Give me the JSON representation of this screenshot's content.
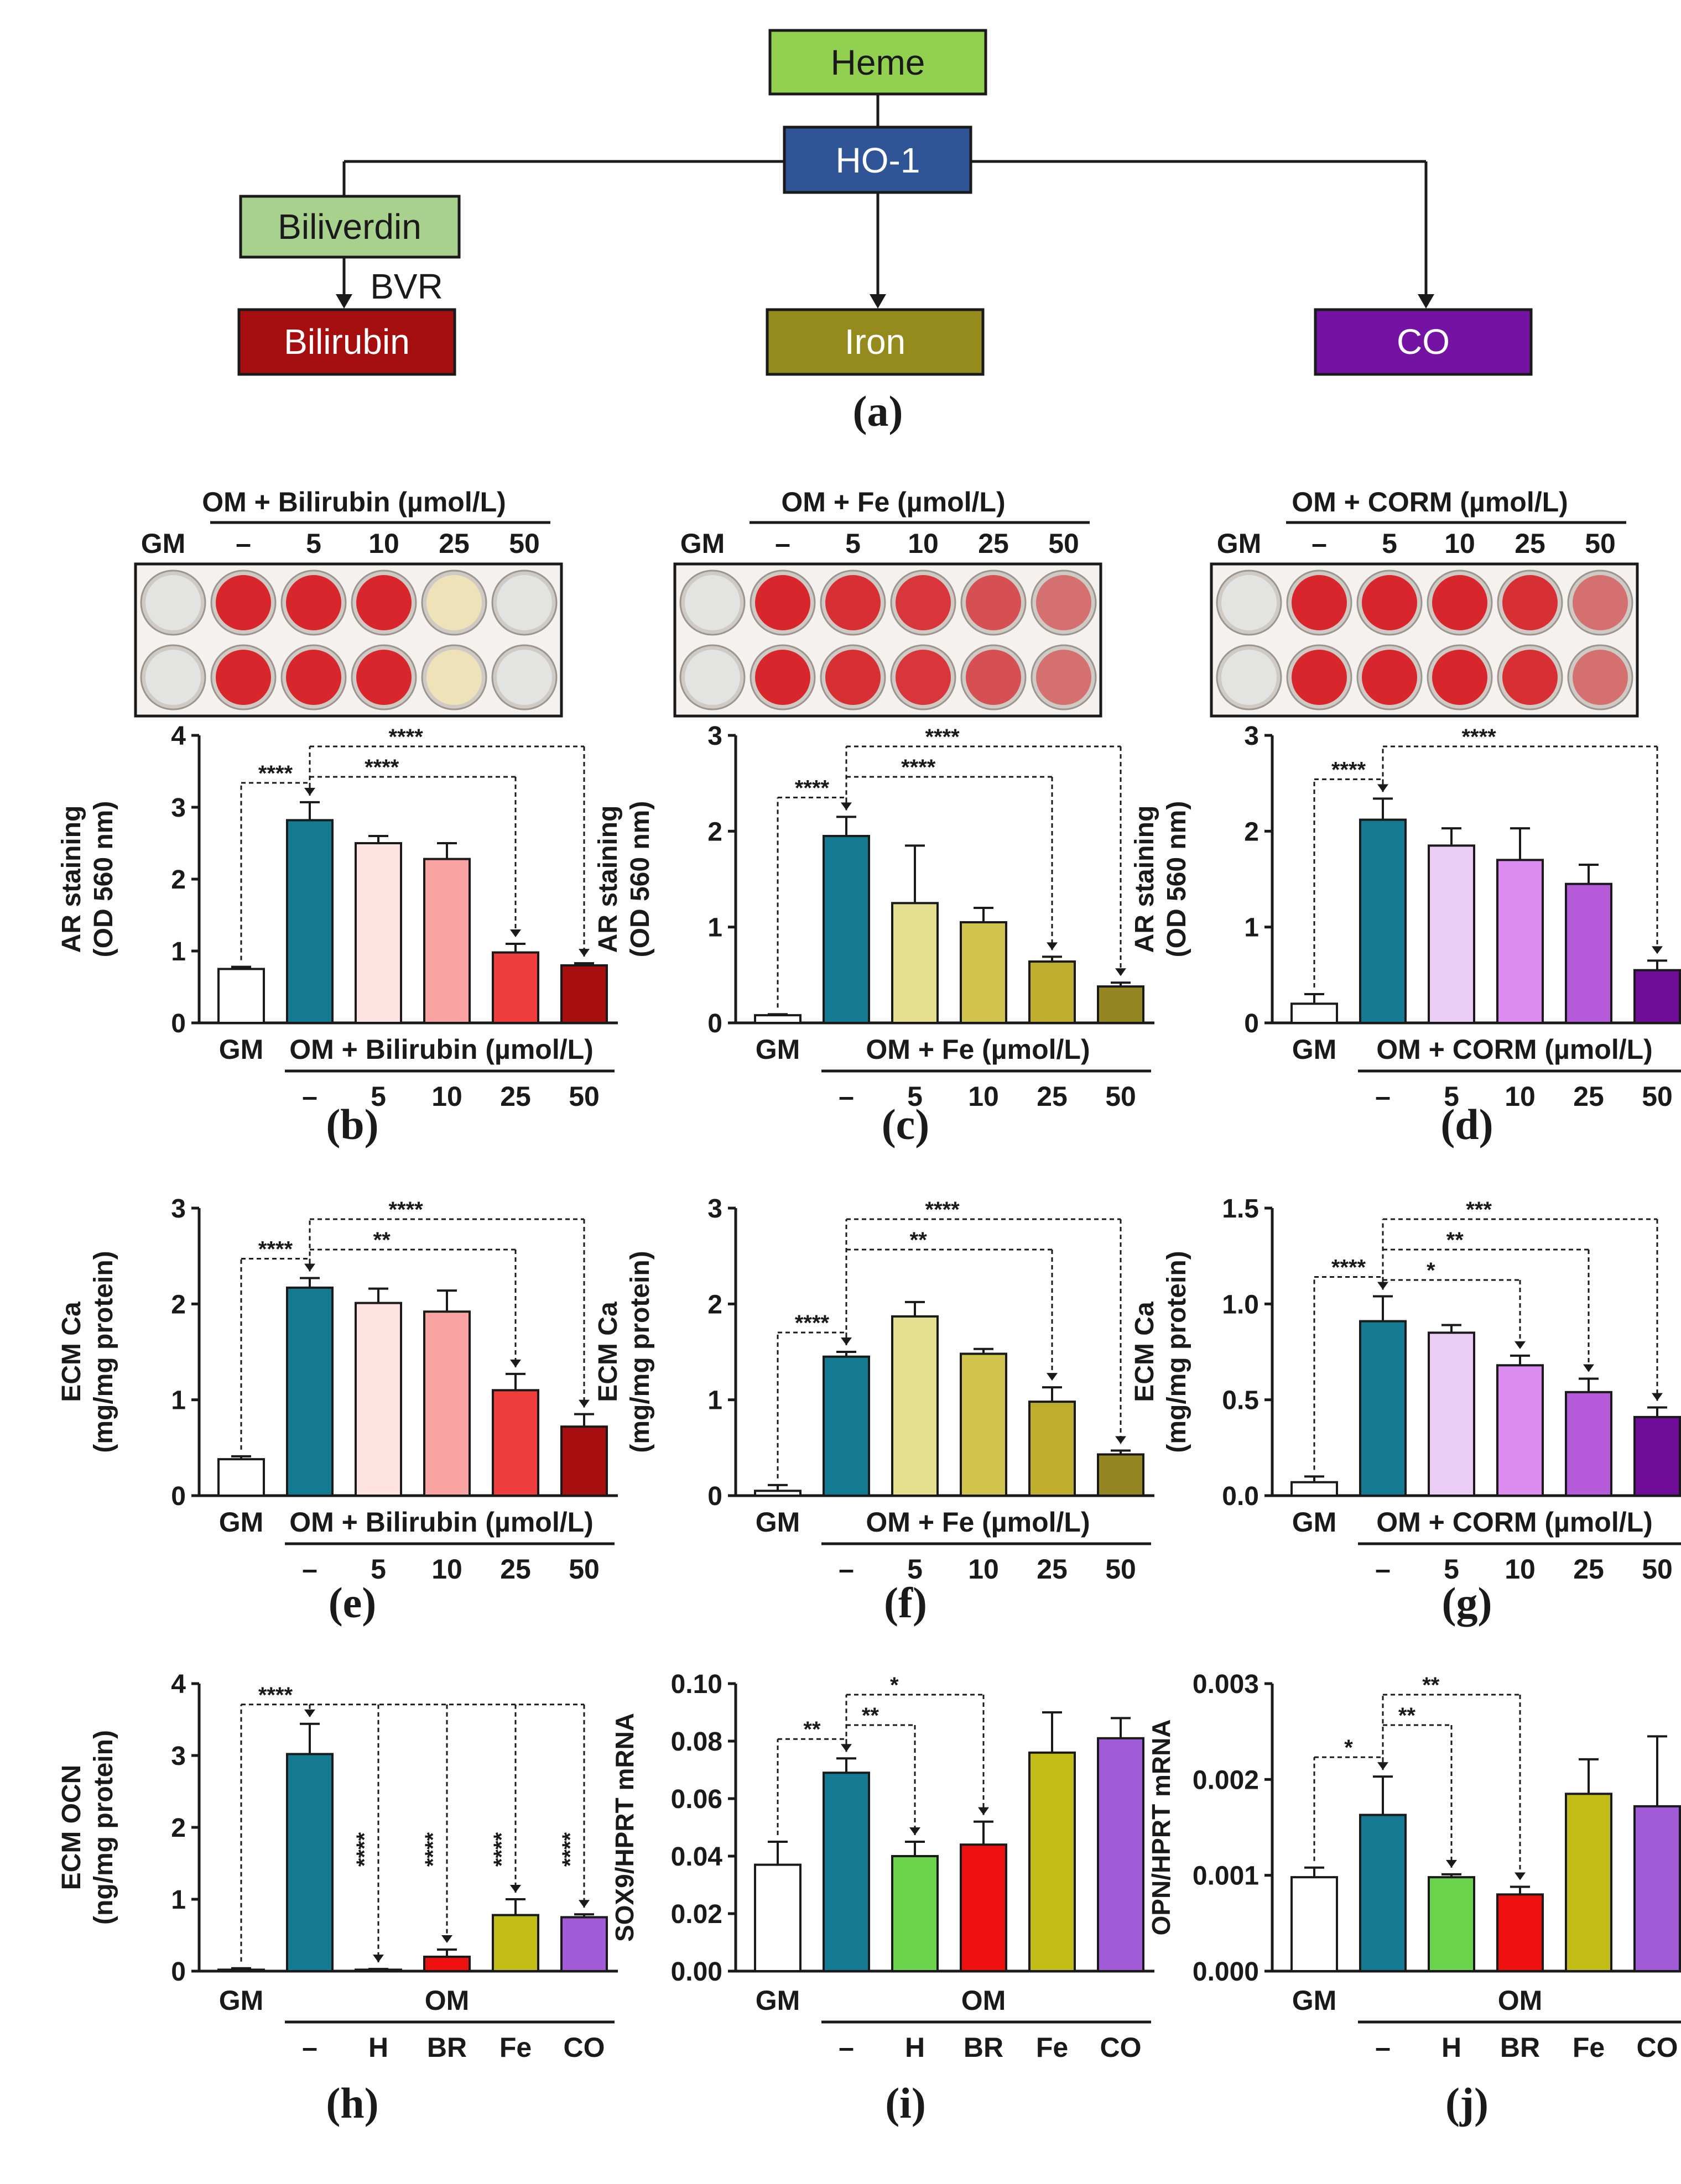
{
  "colors": {
    "gm": "#ffffff",
    "om": "#137a91",
    "bil": [
      "#fde2e2",
      "#f9a3a3",
      "#ef3c3c",
      "#a70f0f"
    ],
    "fe": [
      "#e4de8e",
      "#d0c44f",
      "#bfae2e",
      "#938623"
    ],
    "co": [
      "#eccdf5",
      "#dd8cef",
      "#b55ad8",
      "#6f0d99"
    ],
    "h": "#6cd44c",
    "br": "#ee0f0f",
    "fe_mid": "#c2bd16",
    "co_mid": "#a15bd6",
    "heme_box": "#92d050",
    "ho1_box": "#2f5597",
    "biliverdin_box": "#a9d18e",
    "bilirubin_box": "#a50e0e",
    "iron_box": "#958a1c",
    "co_box": "#7412a3",
    "stain_red": "#d8262c"
  },
  "diagram": {
    "heme": "Heme",
    "ho1": "HO-1",
    "biliverdin": "Biliverdin",
    "bvr": "BVR",
    "bilirubin": "Bilirubin",
    "iron": "Iron",
    "co": "CO"
  },
  "panel_labels": [
    "(a)",
    "(b)",
    "(c)",
    "(d)",
    "(e)",
    "(f)",
    "(g)",
    "(h)",
    "(i)",
    "(j)"
  ],
  "plates": [
    {
      "treatment": "OM + Bilirubin  (µmol/L)",
      "gm": "GM",
      "cols": [
        "–",
        "5",
        "10",
        "25",
        "50"
      ],
      "intensity": [
        0.05,
        1,
        1,
        1,
        0.15,
        0.05
      ]
    },
    {
      "treatment": "OM + Fe (µmol/L)",
      "gm": "GM",
      "cols": [
        "–",
        "5",
        "10",
        "25",
        "50"
      ],
      "intensity": [
        0.05,
        1,
        0.95,
        0.9,
        0.75,
        0.45
      ]
    },
    {
      "treatment": "OM + CORM (µmol/L)",
      "gm": "GM",
      "cols": [
        "–",
        "5",
        "10",
        "25",
        "50"
      ],
      "intensity": [
        0.05,
        1,
        1,
        1,
        0.95,
        0.55
      ]
    }
  ],
  "chart_data": [
    {
      "panel": "(b)",
      "type": "bar",
      "ylabel": "AR staining",
      "ylabel2": "(OD 560 nm)",
      "ylim": [
        0,
        4
      ],
      "yticks": [
        "0",
        "1",
        "2",
        "3",
        "4"
      ],
      "gm_label": "GM",
      "group_label": "OM + Bilirubin  (µmol/L)",
      "categories": [
        "GM",
        "–",
        "5",
        "10",
        "25",
        "50"
      ],
      "values": [
        0.75,
        2.82,
        2.5,
        2.28,
        0.98,
        0.8
      ],
      "errors": [
        0.03,
        0.25,
        0.1,
        0.22,
        0.12,
        0.03
      ],
      "palette": "bil",
      "brackets": [
        {
          "from": 0,
          "to": 1,
          "label": "****"
        },
        {
          "from": 1,
          "to": 4,
          "label": "****"
        },
        {
          "from": 1,
          "to": 5,
          "label": "****"
        }
      ]
    },
    {
      "panel": "(c)",
      "type": "bar",
      "ylabel": "AR staining",
      "ylabel2": "(OD 560 nm)",
      "ylim": [
        0,
        3
      ],
      "yticks": [
        "0",
        "1",
        "2",
        "3"
      ],
      "gm_label": "GM",
      "group_label": "OM + Fe (µmol/L)",
      "categories": [
        "GM",
        "–",
        "5",
        "10",
        "25",
        "50"
      ],
      "values": [
        0.08,
        1.95,
        1.25,
        1.05,
        0.64,
        0.38
      ],
      "errors": [
        0.01,
        0.2,
        0.6,
        0.15,
        0.05,
        0.04
      ],
      "palette": "fe",
      "brackets": [
        {
          "from": 0,
          "to": 1,
          "label": "****"
        },
        {
          "from": 1,
          "to": 4,
          "label": "****"
        },
        {
          "from": 1,
          "to": 5,
          "label": "****"
        }
      ]
    },
    {
      "panel": "(d)",
      "type": "bar",
      "ylabel": "AR staining",
      "ylabel2": "(OD 560 nm)",
      "ylim": [
        0,
        3
      ],
      "yticks": [
        "0",
        "1",
        "2",
        "3"
      ],
      "gm_label": "GM",
      "group_label": "OM + CORM (µmol/L)",
      "categories": [
        "GM",
        "–",
        "5",
        "10",
        "25",
        "50"
      ],
      "values": [
        0.2,
        2.12,
        1.85,
        1.7,
        1.45,
        0.55
      ],
      "errors": [
        0.1,
        0.22,
        0.18,
        0.33,
        0.2,
        0.1
      ],
      "palette": "co",
      "brackets": [
        {
          "from": 0,
          "to": 1,
          "label": "****"
        },
        {
          "from": 1,
          "to": 5,
          "label": "****"
        }
      ]
    },
    {
      "panel": "(e)",
      "type": "bar",
      "ylabel": "ECM Ca",
      "ylabel2": "(mg/mg protein)",
      "ylim": [
        0,
        3
      ],
      "yticks": [
        "0",
        "1",
        "2",
        "3"
      ],
      "gm_label": "GM",
      "group_label": "OM + Bilirubin  (µmol/L)",
      "categories": [
        "GM",
        "–",
        "5",
        "10",
        "25",
        "50"
      ],
      "values": [
        0.38,
        2.17,
        2.01,
        1.92,
        1.1,
        0.72
      ],
      "errors": [
        0.03,
        0.1,
        0.15,
        0.22,
        0.17,
        0.13
      ],
      "palette": "bil",
      "brackets": [
        {
          "from": 0,
          "to": 1,
          "label": "****"
        },
        {
          "from": 1,
          "to": 4,
          "label": "**"
        },
        {
          "from": 1,
          "to": 5,
          "label": "****"
        }
      ]
    },
    {
      "panel": "(f)",
      "type": "bar",
      "ylabel": "ECM Ca",
      "ylabel2": "(mg/mg protein)",
      "ylim": [
        0,
        3
      ],
      "yticks": [
        "0",
        "1",
        "2",
        "3"
      ],
      "gm_label": "GM",
      "group_label": "OM + Fe (µmol/L)",
      "categories": [
        "GM",
        "–",
        "5",
        "10",
        "25",
        "50"
      ],
      "values": [
        0.05,
        1.45,
        1.87,
        1.48,
        0.98,
        0.43
      ],
      "errors": [
        0.06,
        0.05,
        0.15,
        0.05,
        0.15,
        0.04
      ],
      "palette": "fe",
      "brackets": [
        {
          "from": 0,
          "to": 1,
          "label": "****"
        },
        {
          "from": 1,
          "to": 4,
          "label": "**"
        },
        {
          "from": 1,
          "to": 5,
          "label": "****"
        }
      ]
    },
    {
      "panel": "(g)",
      "type": "bar",
      "ylabel": "ECM Ca",
      "ylabel2": "(mg/mg protein)",
      "ylim": [
        0,
        1.5
      ],
      "yticks": [
        "0.0",
        "0.5",
        "1.0",
        "1.5"
      ],
      "gm_label": "GM",
      "group_label": "OM + CORM (µmol/L)",
      "categories": [
        "GM",
        "–",
        "5",
        "10",
        "25",
        "50"
      ],
      "values": [
        0.07,
        0.91,
        0.85,
        0.68,
        0.54,
        0.41
      ],
      "errors": [
        0.03,
        0.13,
        0.04,
        0.05,
        0.07,
        0.05
      ],
      "palette": "co",
      "brackets": [
        {
          "from": 0,
          "to": 1,
          "label": "****"
        },
        {
          "from": 1,
          "to": 3,
          "label": "*"
        },
        {
          "from": 1,
          "to": 4,
          "label": "**"
        },
        {
          "from": 1,
          "to": 5,
          "label": "***"
        }
      ]
    },
    {
      "panel": "(h)",
      "type": "bar",
      "ylabel": "ECM OCN",
      "ylabel2": "(ng/mg protein)",
      "ylim": [
        0,
        4
      ],
      "yticks": [
        "0",
        "1",
        "2",
        "3",
        "4"
      ],
      "gm_label": "GM",
      "group_label": "OM",
      "categories": [
        "GM",
        "–",
        "H",
        "BR",
        "Fe",
        "CO"
      ],
      "values": [
        0.02,
        3.02,
        0.02,
        0.2,
        0.78,
        0.75
      ],
      "errors": [
        0.02,
        0.42,
        0.01,
        0.1,
        0.22,
        0.04
      ],
      "palette": "mech",
      "brackets": [
        {
          "from": 0,
          "to": 1,
          "label": "****"
        }
      ],
      "vertical_sig": [
        {
          "bar": 2,
          "label": "****"
        },
        {
          "bar": 3,
          "label": "****"
        },
        {
          "bar": 4,
          "label": "****"
        },
        {
          "bar": 5,
          "label": "****"
        }
      ]
    },
    {
      "panel": "(i)",
      "type": "bar",
      "ylabel": "SOX9/HPRT mRNA",
      "ylabel2": "",
      "ylim": [
        0,
        0.1
      ],
      "yticks": [
        "0.00",
        "0.02",
        "0.04",
        "0.06",
        "0.08",
        "0.10"
      ],
      "gm_label": "GM",
      "group_label": "OM",
      "categories": [
        "GM",
        "–",
        "H",
        "BR",
        "Fe",
        "CO"
      ],
      "values": [
        0.037,
        0.069,
        0.04,
        0.044,
        0.076,
        0.081
      ],
      "errors": [
        0.008,
        0.005,
        0.005,
        0.008,
        0.014,
        0.007
      ],
      "palette": "mech",
      "brackets": [
        {
          "from": 0,
          "to": 1,
          "label": "**"
        },
        {
          "from": 1,
          "to": 2,
          "label": "**"
        },
        {
          "from": 1,
          "to": 3,
          "label": "*"
        }
      ]
    },
    {
      "panel": "(j)",
      "type": "bar",
      "ylabel": "OPN/HPRT mRNA",
      "ylabel2": "",
      "ylim": [
        0,
        0.003
      ],
      "yticks": [
        "0.000",
        "0.001",
        "0.002",
        "0.003"
      ],
      "gm_label": "GM",
      "group_label": "OM",
      "categories": [
        "GM",
        "–",
        "H",
        "BR",
        "Fe",
        "CO"
      ],
      "values": [
        0.00098,
        0.00163,
        0.00098,
        0.0008,
        0.00185,
        0.00172
      ],
      "errors": [
        0.0001,
        0.0004,
        3e-05,
        8e-05,
        0.00036,
        0.00073
      ],
      "palette": "mech",
      "brackets": [
        {
          "from": 0,
          "to": 1,
          "label": "*"
        },
        {
          "from": 1,
          "to": 2,
          "label": "**"
        },
        {
          "from": 1,
          "to": 3,
          "label": "**"
        }
      ]
    }
  ]
}
